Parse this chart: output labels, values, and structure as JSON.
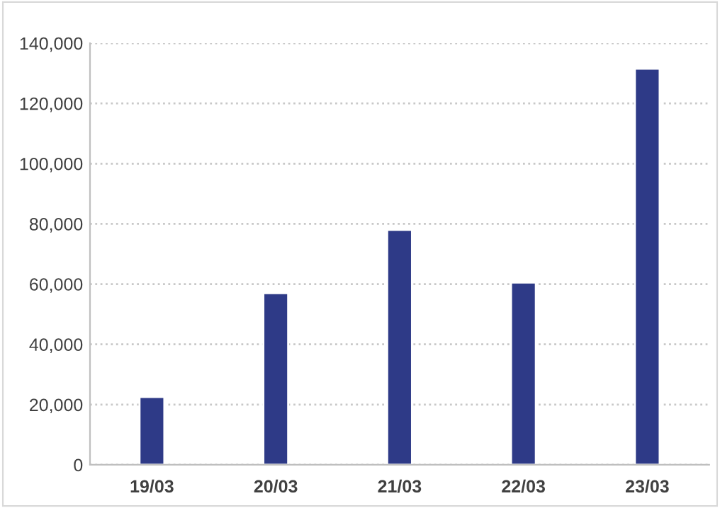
{
  "chart_data": {
    "type": "bar",
    "categories": [
      "19/03",
      "20/03",
      "21/03",
      "22/03",
      "23/03"
    ],
    "values": [
      22500,
      57000,
      78000,
      60500,
      131500
    ],
    "color": "#2e3a87",
    "ylim": [
      0,
      140000
    ],
    "yticks": [
      {
        "value": 0,
        "label": "0"
      },
      {
        "value": 20000,
        "label": "20,000"
      },
      {
        "value": 40000,
        "label": "40,000"
      },
      {
        "value": 60000,
        "label": "60,000"
      },
      {
        "value": 80000,
        "label": "80,000"
      },
      {
        "value": 100000,
        "label": "100,000"
      },
      {
        "value": 120000,
        "label": "120,000"
      },
      {
        "value": 140000,
        "label": "140,000"
      }
    ],
    "grid": "y",
    "legend": false
  }
}
